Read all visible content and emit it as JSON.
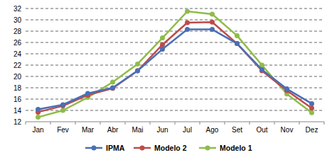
{
  "chart_data": {
    "type": "line",
    "categories": [
      "Jan",
      "Fev",
      "Mar",
      "Abr",
      "Mai",
      "Jun",
      "Jul",
      "Ago",
      "Set",
      "Out",
      "Nov",
      "Dez"
    ],
    "series": [
      {
        "name": "IPMA",
        "color": "#4a6fb5",
        "marker": "circle",
        "values": [
          14.2,
          15.0,
          17.0,
          18.0,
          21.0,
          24.8,
          28.3,
          28.3,
          25.8,
          21.2,
          17.8,
          15.2
        ]
      },
      {
        "name": "Modelo 2",
        "color": "#be4b48",
        "marker": "circle",
        "values": [
          13.7,
          14.8,
          16.7,
          17.9,
          21.0,
          25.6,
          29.5,
          29.6,
          25.8,
          21.0,
          17.5,
          14.4
        ]
      },
      {
        "name": "Modelo 1",
        "color": "#8fbc4a",
        "marker": "circle",
        "values": [
          12.8,
          14.0,
          16.3,
          19.0,
          22.2,
          26.8,
          31.5,
          31.0,
          27.2,
          22.0,
          16.9,
          13.6
        ]
      }
    ],
    "ylim": [
      12,
      32
    ],
    "yticks": [
      12,
      14,
      16,
      18,
      20,
      22,
      24,
      26,
      28,
      30,
      32
    ],
    "grid": true,
    "legend": "bottom"
  }
}
